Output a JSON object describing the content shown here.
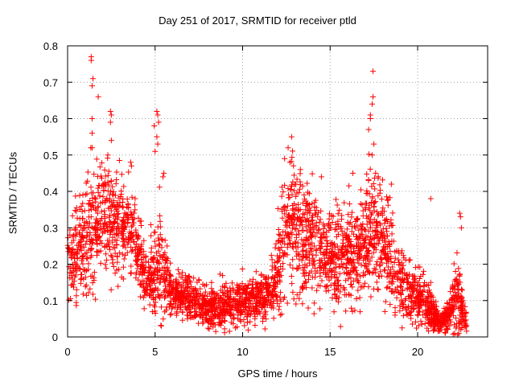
{
  "chart_data": {
    "type": "scatter",
    "title": "Day 251 of 2017, SRMTID for receiver ptld",
    "xlabel": "GPS time / hours",
    "ylabel": "SRMTID / TECUs",
    "xlim": [
      0,
      24
    ],
    "ylim": [
      0,
      0.8
    ],
    "xticks": [
      0,
      5,
      10,
      15,
      20
    ],
    "yticks": [
      0,
      0.1,
      0.2,
      0.3,
      0.4,
      0.5,
      0.6,
      0.7,
      0.8
    ],
    "xtick_labels": [
      "0",
      "5",
      "10",
      "15",
      "20"
    ],
    "ytick_labels": [
      "0",
      "0.1",
      "0.2",
      "0.3",
      "0.4",
      "0.5",
      "0.6",
      "0.7",
      "0.8"
    ],
    "grid": true,
    "marker": "+",
    "marker_color": "#ff0000",
    "series": [
      {
        "name": "SRMTID",
        "profile": [
          [
            0.0,
            0.22,
            0.06
          ],
          [
            0.5,
            0.23,
            0.06
          ],
          [
            1.0,
            0.26,
            0.08
          ],
          [
            1.5,
            0.32,
            0.09
          ],
          [
            2.0,
            0.33,
            0.08
          ],
          [
            2.5,
            0.32,
            0.08
          ],
          [
            3.0,
            0.31,
            0.07
          ],
          [
            3.5,
            0.3,
            0.06
          ],
          [
            4.0,
            0.25,
            0.06
          ],
          [
            4.5,
            0.15,
            0.04
          ],
          [
            5.0,
            0.17,
            0.06
          ],
          [
            5.3,
            0.2,
            0.09
          ],
          [
            5.6,
            0.15,
            0.05
          ],
          [
            6.0,
            0.12,
            0.03
          ],
          [
            7.0,
            0.11,
            0.03
          ],
          [
            8.0,
            0.08,
            0.025
          ],
          [
            9.0,
            0.09,
            0.03
          ],
          [
            10.0,
            0.1,
            0.03
          ],
          [
            11.0,
            0.1,
            0.03
          ],
          [
            11.8,
            0.14,
            0.04
          ],
          [
            12.3,
            0.26,
            0.08
          ],
          [
            12.8,
            0.32,
            0.09
          ],
          [
            13.5,
            0.27,
            0.08
          ],
          [
            14.5,
            0.23,
            0.07
          ],
          [
            15.5,
            0.22,
            0.07
          ],
          [
            16.5,
            0.23,
            0.07
          ],
          [
            17.2,
            0.29,
            0.08
          ],
          [
            17.8,
            0.28,
            0.07
          ],
          [
            18.3,
            0.26,
            0.07
          ],
          [
            18.8,
            0.17,
            0.05
          ],
          [
            19.5,
            0.12,
            0.04
          ],
          [
            20.3,
            0.1,
            0.04
          ],
          [
            20.8,
            0.08,
            0.03
          ],
          [
            21.2,
            0.04,
            0.015
          ],
          [
            21.8,
            0.06,
            0.02
          ],
          [
            22.3,
            0.12,
            0.06
          ],
          [
            22.7,
            0.05,
            0.02
          ],
          [
            22.8,
            0.03,
            0.01
          ]
        ],
        "n_points": 3200,
        "x_range": [
          0.0,
          22.8
        ],
        "spikes": [
          [
            1.35,
            0.77
          ],
          [
            1.35,
            0.76
          ],
          [
            1.45,
            0.71
          ],
          [
            1.4,
            0.69
          ],
          [
            1.75,
            0.66
          ],
          [
            1.4,
            0.6
          ],
          [
            1.4,
            0.56
          ],
          [
            1.4,
            0.52
          ],
          [
            2.45,
            0.62
          ],
          [
            2.5,
            0.61
          ],
          [
            2.45,
            0.59
          ],
          [
            2.5,
            0.54
          ],
          [
            2.3,
            0.5
          ],
          [
            3.6,
            0.48
          ],
          [
            3.65,
            0.47
          ],
          [
            5.1,
            0.62
          ],
          [
            5.15,
            0.61
          ],
          [
            5.2,
            0.59
          ],
          [
            4.95,
            0.58
          ],
          [
            5.1,
            0.55
          ],
          [
            5.15,
            0.53
          ],
          [
            5.0,
            0.51
          ],
          [
            5.5,
            0.45
          ],
          [
            5.45,
            0.44
          ],
          [
            12.8,
            0.55
          ],
          [
            12.6,
            0.52
          ],
          [
            12.4,
            0.49
          ],
          [
            12.7,
            0.48
          ],
          [
            13.3,
            0.46
          ],
          [
            14.5,
            0.44
          ],
          [
            16.3,
            0.45
          ],
          [
            17.45,
            0.73
          ],
          [
            17.45,
            0.66
          ],
          [
            17.4,
            0.64
          ],
          [
            17.3,
            0.61
          ],
          [
            17.3,
            0.6
          ],
          [
            17.2,
            0.57
          ],
          [
            17.5,
            0.53
          ],
          [
            17.4,
            0.5
          ],
          [
            17.6,
            0.45
          ],
          [
            18.5,
            0.42
          ],
          [
            20.75,
            0.38
          ],
          [
            22.4,
            0.34
          ],
          [
            22.45,
            0.33
          ],
          [
            22.5,
            0.3
          ]
        ]
      }
    ]
  }
}
